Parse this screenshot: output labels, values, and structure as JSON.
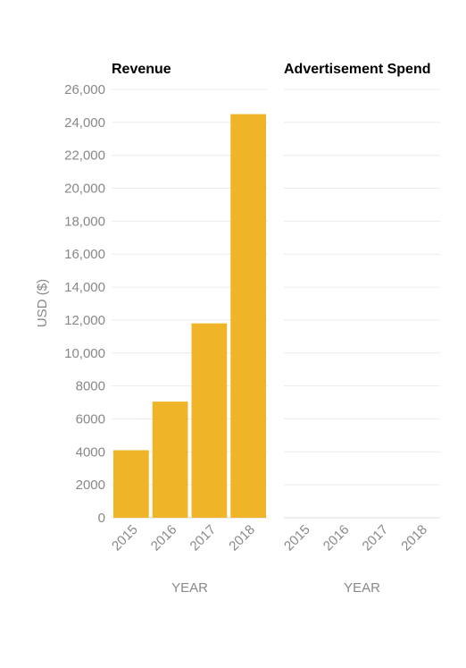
{
  "chart_data": [
    {
      "type": "bar",
      "title": "Revenue",
      "title_color": "#f0b429",
      "bar_color": "#f0b429",
      "categories": [
        "2015",
        "2016",
        "2017",
        "2018"
      ],
      "values": [
        4100,
        7050,
        11800,
        24500
      ],
      "xlabel": "YEAR",
      "ylabel": "USD ($)",
      "ylim": [
        0,
        26000
      ],
      "yticks": [
        0,
        2000,
        4000,
        6000,
        8000,
        10000,
        12000,
        14000,
        16000,
        18000,
        20000,
        22000,
        24000,
        26000
      ],
      "ytick_labels": [
        "0",
        "2000",
        "4000",
        "6000",
        "8000",
        "10,000",
        "12,000",
        "14,000",
        "16,000",
        "18,000",
        "20,000",
        "22,000",
        "24,000",
        "26,000"
      ],
      "grid": true
    },
    {
      "type": "bar",
      "title": "Advertisement Spend",
      "title_color": "#d79cf0",
      "bar_color": "#d79cf0",
      "categories": [
        "2015",
        "2016",
        "2017",
        "2018"
      ],
      "values": [
        0,
        0,
        0,
        0
      ],
      "xlabel": "YEAR",
      "ylabel": "",
      "ylim": [
        0,
        26000
      ],
      "grid": true
    }
  ]
}
